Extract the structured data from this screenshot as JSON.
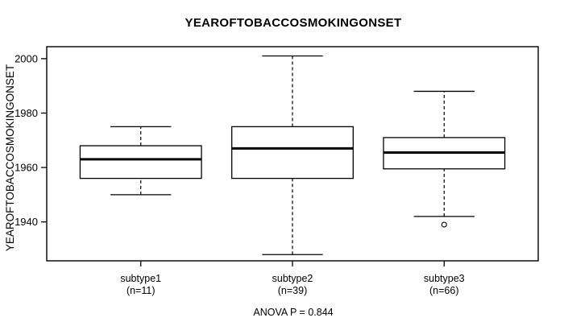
{
  "chart_data": {
    "type": "boxplot",
    "title": "YEAROFTOBACCOSMOKINGONSET",
    "ylabel": "YEAROFTOBACCOSMOKINGONSET",
    "xlabel": "",
    "annotation": "ANOVA P = 0.844",
    "ylim": [
      1925.7,
      2004.4
    ],
    "yticks": [
      1940,
      1960,
      1980,
      2000
    ],
    "grid": false,
    "legend": "none",
    "categories": [
      "subtype1",
      "subtype2",
      "subtype3"
    ],
    "category_sublabels": [
      "(n=11)",
      "(n=39)",
      "(n=66)"
    ],
    "series": [
      {
        "name": "subtype1",
        "n": 11,
        "whisker_low": 1950,
        "q1": 1956,
        "median": 1963,
        "q3": 1968,
        "whisker_high": 1975,
        "outliers": []
      },
      {
        "name": "subtype2",
        "n": 39,
        "whisker_low": 1928,
        "q1": 1956,
        "median": 1967,
        "q3": 1975,
        "whisker_high": 2001,
        "outliers": []
      },
      {
        "name": "subtype3",
        "n": 66,
        "whisker_low": 1942,
        "q1": 1959.5,
        "median": 1965.5,
        "q3": 1971,
        "whisker_high": 1988,
        "outliers": [
          1939
        ]
      }
    ],
    "colors": {
      "foreground": "#000000",
      "background": "#ffffff"
    }
  }
}
